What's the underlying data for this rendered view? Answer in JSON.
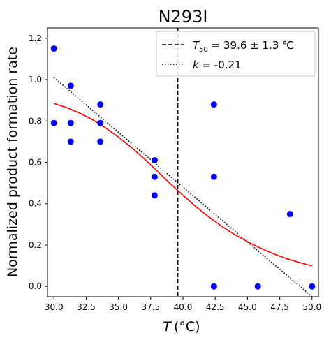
{
  "chart_data": {
    "type": "scatter",
    "title": "N293I",
    "xlabel": "(°C)",
    "xlabel_var": "T",
    "ylabel": "Normalized product formation rate",
    "xlim": [
      29.5,
      50.5
    ],
    "ylim": [
      -0.05,
      1.25
    ],
    "xticks": [
      "30.0",
      "32.5",
      "35.0",
      "37.5",
      "40.0",
      "42.5",
      "45.0",
      "47.5",
      "50.0"
    ],
    "xtick_values": [
      30,
      32.5,
      35,
      37.5,
      40,
      42.5,
      45,
      47.5,
      50
    ],
    "yticks": [
      "0.0",
      "0.2",
      "0.4",
      "0.6",
      "0.8",
      "1.0",
      "1.2"
    ],
    "ytick_values": [
      0,
      0.2,
      0.4,
      0.6,
      0.8,
      1.0,
      1.2
    ],
    "points": {
      "color": "#0000ff",
      "x": [
        30.0,
        30.0,
        31.3,
        31.3,
        31.3,
        33.6,
        33.6,
        33.6,
        37.8,
        37.8,
        37.8,
        42.4,
        42.4,
        42.4,
        45.8,
        48.3,
        50.0
      ],
      "y": [
        1.15,
        0.79,
        0.97,
        0.79,
        0.7,
        0.88,
        0.79,
        0.7,
        0.61,
        0.53,
        0.44,
        0.88,
        0.53,
        0.0,
        0.0,
        0.35,
        0.0
      ]
    },
    "fit_curve": {
      "color": "#ff0000",
      "x": [
        30,
        31,
        32,
        33,
        34,
        35,
        36,
        37,
        38,
        39,
        40,
        41,
        42,
        43,
        44,
        45,
        46,
        47,
        48,
        49,
        50
      ],
      "y": [
        0.885,
        0.864,
        0.838,
        0.806,
        0.767,
        0.722,
        0.672,
        0.617,
        0.558,
        0.498,
        0.441,
        0.386,
        0.336,
        0.291,
        0.251,
        0.216,
        0.185,
        0.158,
        0.135,
        0.116,
        0.099
      ]
    },
    "t50_line": {
      "x": 39.6,
      "style": "dashed",
      "color": "#000000"
    },
    "slope_line": {
      "x": [
        30,
        50.1
      ],
      "y": [
        1.01,
        -0.055
      ],
      "style": "dotted",
      "color": "#000000"
    },
    "legend": {
      "position": "top-right",
      "entries": [
        {
          "var": "T",
          "sub": "50",
          "label": " = 39.6 ± 1.3 ℃",
          "style": "dashed"
        },
        {
          "var": "k",
          "label": " = -0.21",
          "style": "dotted"
        }
      ]
    }
  }
}
